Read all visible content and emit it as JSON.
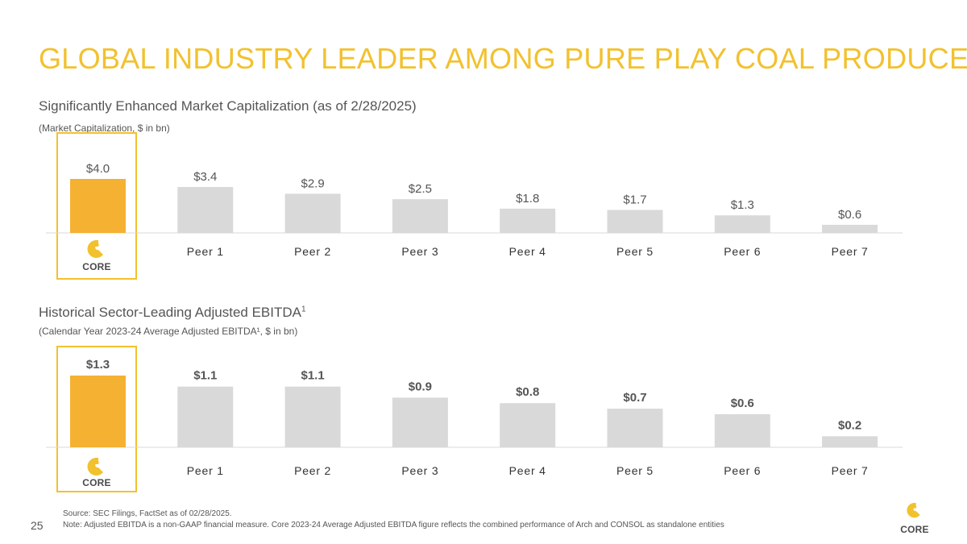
{
  "title": "GLOBAL INDUSTRY LEADER AMONG PURE PLAY COAL PRODUCERS",
  "colors": {
    "accent": "#F2C12E",
    "highlight_bar": "#F5B132",
    "peer_bar": "#D9D9D9",
    "text": "#555555"
  },
  "brand": {
    "name": "CORE",
    "logo_icon": "core-logo-icon"
  },
  "chart_data": [
    {
      "type": "bar",
      "heading": "Significantly Enhanced Market Capitalization (as of 2/28/2025)",
      "subtitle": "(Market Capitalization, $ in bn)",
      "categories": [
        "CORE",
        "Peer 1",
        "Peer 2",
        "Peer 3",
        "Peer 4",
        "Peer 5",
        "Peer 6",
        "Peer 7"
      ],
      "values": [
        4.0,
        3.4,
        2.9,
        2.5,
        1.8,
        1.7,
        1.3,
        0.6
      ],
      "labels": [
        "$4.0",
        "$3.4",
        "$2.9",
        "$2.5",
        "$1.8",
        "$1.7",
        "$1.3",
        "$0.6"
      ],
      "ylim": [
        0,
        4.0
      ],
      "highlight_index": 0
    },
    {
      "type": "bar",
      "heading": "Historical Sector-Leading Adjusted EBITDA",
      "heading_sup": "1",
      "subtitle": "(Calendar Year 2023-24 Average Adjusted EBITDA¹, $ in bn)",
      "categories": [
        "CORE",
        "Peer 1",
        "Peer 2",
        "Peer 3",
        "Peer 4",
        "Peer 5",
        "Peer 6",
        "Peer 7"
      ],
      "values": [
        1.3,
        1.1,
        1.1,
        0.9,
        0.8,
        0.7,
        0.6,
        0.2
      ],
      "labels": [
        "$1.3",
        "$1.1",
        "$1.1",
        "$0.9",
        "$0.8",
        "$0.7",
        "$0.6",
        "$0.2"
      ],
      "ylim": [
        0,
        1.3
      ],
      "highlight_index": 0
    }
  ],
  "footer": {
    "source": "Source: SEC Filings, FactSet as of 02/28/2025.",
    "note": "Note: Adjusted EBITDA is a non-GAAP financial measure. Core 2023-24 Average Adjusted EBITDA figure reflects the combined performance of Arch and CONSOL as standalone entities",
    "page_number": "25"
  }
}
